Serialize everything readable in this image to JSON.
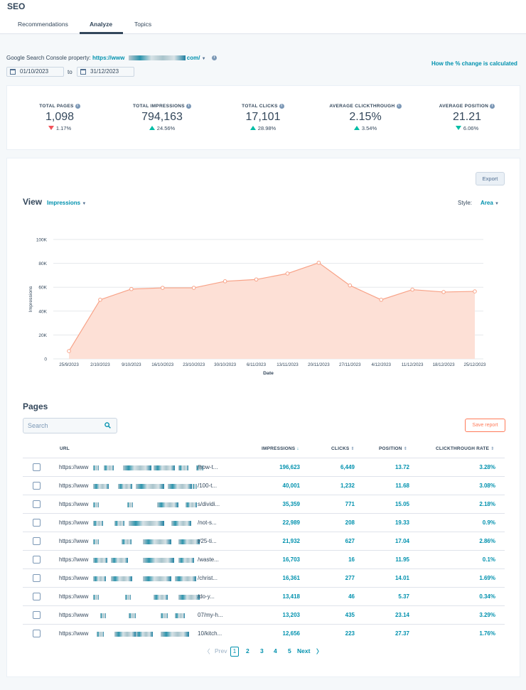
{
  "app": {
    "title": "SEO"
  },
  "tabs": [
    {
      "label": "Recommendations",
      "active": false
    },
    {
      "label": "Analyze",
      "active": true
    },
    {
      "label": "Topics",
      "active": false
    }
  ],
  "gsc": {
    "label": "Google Search Console property:",
    "url_prefix": "https://www",
    "url_suffix": "com/",
    "how_calc": "How the % change is calculated"
  },
  "dates": {
    "start": "01/10/2023",
    "to": "to",
    "end": "31/12/2023"
  },
  "metrics": [
    {
      "label": "TOTAL PAGES",
      "value": "1,098",
      "change": "1.17%",
      "direction": "down",
      "color": "#f2545b"
    },
    {
      "label": "TOTAL IMPRESSIONS",
      "value": "794,163",
      "change": "24.56%",
      "direction": "up",
      "color": "#00bda5"
    },
    {
      "label": "TOTAL CLICKS",
      "value": "17,101",
      "change": "28.98%",
      "direction": "up",
      "color": "#00bda5"
    },
    {
      "label": "AVERAGE CLICKTHROUGH",
      "value": "2.15%",
      "change": "3.54%",
      "direction": "up",
      "color": "#00bda5"
    },
    {
      "label": "AVERAGE POSITION",
      "value": "21.21",
      "change": "6.06%",
      "direction": "down",
      "color": "#00bda5"
    }
  ],
  "view": {
    "export_label": "Export",
    "title": "View",
    "metric_select": "Impressions",
    "style_label": "Style:",
    "style_select": "Area"
  },
  "chart_data": {
    "type": "area",
    "title": "",
    "xlabel": "Date",
    "ylabel": "Impressions",
    "ylim": [
      0,
      100000
    ],
    "y_ticks": [
      "0",
      "20K",
      "40K",
      "60K",
      "80K",
      "100K"
    ],
    "y_tick_values": [
      0,
      20000,
      40000,
      60000,
      80000,
      100000
    ],
    "x": [
      "25/9/2023",
      "2/10/2023",
      "9/10/2023",
      "16/10/2023",
      "23/10/2023",
      "30/10/2023",
      "6/11/2023",
      "13/11/2023",
      "20/11/2023",
      "27/11/2023",
      "4/12/2023",
      "11/12/2023",
      "18/12/2023",
      "25/12/2023"
    ],
    "series": [
      {
        "name": "Impressions",
        "values": [
          6500,
          49500,
          58500,
          59500,
          59500,
          65000,
          66500,
          71500,
          80500,
          61500,
          49500,
          58000,
          56000,
          56500
        ]
      }
    ],
    "colors": {
      "line": "#f8a287",
      "fill": "#fde0d6",
      "grid": "#e5e8eb"
    }
  },
  "pages": {
    "title": "Pages",
    "search_placeholder": "Search",
    "save_report": "Save report",
    "columns": {
      "url": "URL",
      "impressions": "IMPRESSIONS",
      "clicks": "CLICKS",
      "position": "POSITION",
      "ctr": "CLICKTHROUGH RATE"
    },
    "rows": [
      {
        "url_prefix": "https://www",
        "url_tail": "/how-t...",
        "impressions": "196,623",
        "clicks": "6,449",
        "position": "13.72",
        "ctr": "3.28%"
      },
      {
        "url_prefix": "https://www",
        "url_tail": "/100-t...",
        "impressions": "40,001",
        "clicks": "1,232",
        "position": "11.68",
        "ctr": "3.08%"
      },
      {
        "url_prefix": "https://www",
        "url_tail": "s/dividi...",
        "impressions": "35,359",
        "clicks": "771",
        "position": "15.05",
        "ctr": "2.18%"
      },
      {
        "url_prefix": "https://www",
        "url_tail": "/not-s...",
        "impressions": "22,989",
        "clicks": "208",
        "position": "19.33",
        "ctr": "0.9%"
      },
      {
        "url_prefix": "https://www",
        "url_tail": "t/25-ti...",
        "impressions": "21,932",
        "clicks": "627",
        "position": "17.04",
        "ctr": "2.86%"
      },
      {
        "url_prefix": "https://www",
        "url_tail": "/waste...",
        "impressions": "16,703",
        "clicks": "16",
        "position": "11.95",
        "ctr": "0.1%"
      },
      {
        "url_prefix": "https://www",
        "url_tail": "/christ...",
        "impressions": "16,361",
        "clicks": "277",
        "position": "14.01",
        "ctr": "1.69%"
      },
      {
        "url_prefix": "https://www",
        "url_tail": "/do-y...",
        "impressions": "13,418",
        "clicks": "46",
        "position": "5.37",
        "ctr": "0.34%"
      },
      {
        "url_prefix": "https://www",
        "url_tail": "07/my-h...",
        "impressions": "13,203",
        "clicks": "435",
        "position": "23.14",
        "ctr": "3.29%"
      },
      {
        "url_prefix": "https://www",
        "url_tail": "10/kitch...",
        "impressions": "12,656",
        "clicks": "223",
        "position": "27.37",
        "ctr": "1.76%"
      }
    ]
  },
  "pagination": {
    "prev": "Prev",
    "pages": [
      "1",
      "2",
      "3",
      "4",
      "5"
    ],
    "current": "1",
    "next": "Next"
  }
}
